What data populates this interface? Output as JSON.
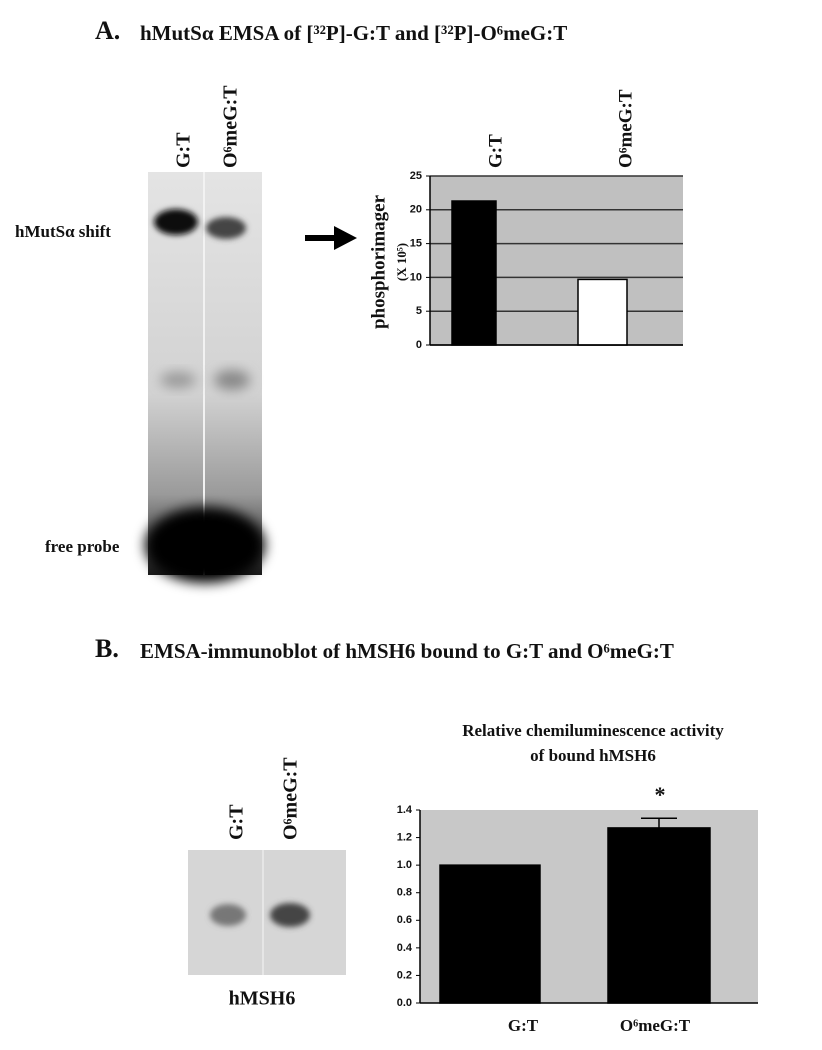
{
  "panel_a": {
    "letter": "A.",
    "title": "hMutSα EMSA of [³²P]-G:T and [³²P]-O⁶meG:T",
    "gel": {
      "lanes": [
        "G:T",
        "O⁶meG:T"
      ],
      "band_labels": [
        "hMutSα shift",
        "free probe"
      ]
    }
  },
  "panel_b": {
    "letter": "B.",
    "title": "EMSA-immunoblot of hMSH6 bound to G:T and O⁶meG:T",
    "gel": {
      "lanes": [
        "G:T",
        "O⁶meG:T"
      ],
      "caption": "hMSH6"
    }
  },
  "chart_data": [
    {
      "type": "bar",
      "ylabel": "phosphorimager",
      "ylabel_unit": "(X 10⁵)",
      "categories": [
        "G:T",
        "O⁶meG:T"
      ],
      "values": [
        21.3,
        9.7
      ],
      "colors": [
        "#000000",
        "#ffffff"
      ],
      "ylim": [
        0,
        25
      ],
      "yticks": [
        0,
        5,
        10,
        15,
        20,
        25
      ],
      "grid": true,
      "plot_background": "#c0c0c0"
    },
    {
      "type": "bar",
      "title": [
        "Relative chemiluminescence activity",
        "of bound hMSH6"
      ],
      "categories": [
        "G:T",
        "O⁶meG:T"
      ],
      "values": [
        1.0,
        1.27
      ],
      "errors": [
        null,
        0.07
      ],
      "colors": [
        "#000000",
        "#000000"
      ],
      "annotation": "*",
      "ylim": [
        0,
        1.4
      ],
      "yticks": [
        {
          "value": 0,
          "label": "0.0"
        },
        0.2,
        0.4,
        0.6,
        0.8,
        {
          "value": 1,
          "label": "1.0"
        },
        1.2,
        1.4
      ],
      "grid": false,
      "plot_background": "#c8c8c8"
    }
  ]
}
